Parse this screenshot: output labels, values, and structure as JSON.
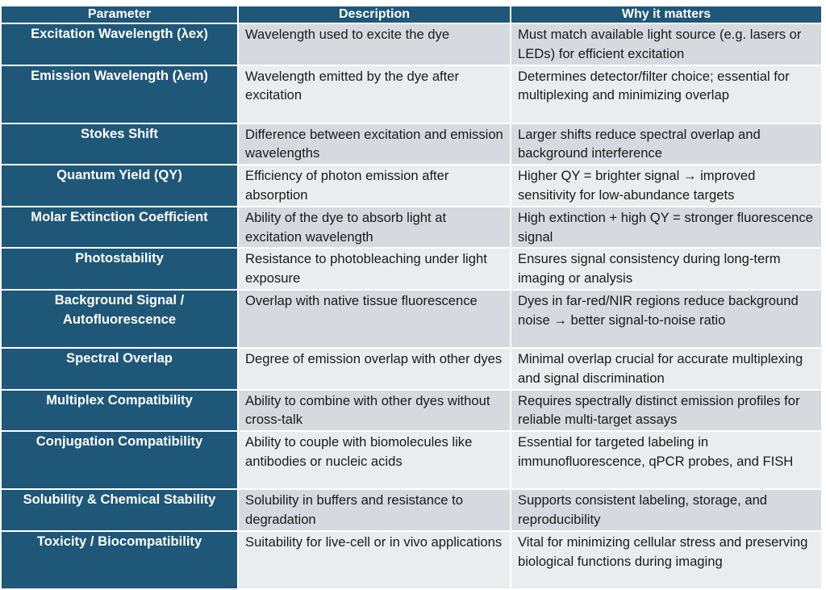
{
  "headers": {
    "parameter": "Parameter",
    "description": "Description",
    "why": "Why it matters"
  },
  "rows": [
    {
      "parameter": "Excitation Wavelength (λex)",
      "description": "Wavelength used to excite the dye",
      "why": "Must match available light source (e.g. lasers or LEDs) for efficient excitation"
    },
    {
      "parameter": "Emission Wavelength (λem)",
      "description": "Wavelength emitted by the dye after excitation",
      "why": "Determines detector/filter choice; essential for multiplexing and minimizing overlap"
    },
    {
      "parameter": "Stokes Shift",
      "description": "Difference between excitation and emission wavelengths",
      "why": "Larger shifts reduce spectral overlap and background interference"
    },
    {
      "parameter": "Quantum Yield (QY)",
      "description": "Efficiency of photon emission after absorption",
      "why": "Higher QY = brighter signal → improved sensitivity for low-abundance targets"
    },
    {
      "parameter": "Molar Extinction Coefficient",
      "description": "Ability of the dye to absorb light at excitation wavelength",
      "why": "High extinction + high QY = stronger fluorescence signal"
    },
    {
      "parameter": "Photostability",
      "description": "Resistance to photobleaching under light exposure",
      "why": "Ensures signal consistency during long-term imaging or analysis"
    },
    {
      "parameter": "Background Signal / Autofluorescence",
      "description": "Overlap with native tissue fluorescence",
      "why": "Dyes in far-red/NIR regions reduce background noise → better signal-to-noise ratio"
    },
    {
      "parameter": "Spectral Overlap",
      "description": "Degree of emission overlap with other dyes",
      "why": "Minimal overlap crucial for accurate multiplexing and signal discrimination"
    },
    {
      "parameter": "Multiplex Compatibility",
      "description": "Ability to combine with other dyes without cross-talk",
      "why": "Requires spectrally distinct emission profiles for reliable multi-target assays"
    },
    {
      "parameter": "Conjugation Compatibility",
      "description": "Ability to couple with biomolecules like antibodies or nucleic acids",
      "why": "Essential for targeted labeling in immunofluorescence, qPCR probes, and FISH"
    },
    {
      "parameter": "Solubility & Chemical Stability",
      "description": "Solubility in buffers and resistance to degradation",
      "why": "Supports consistent labeling, storage, and reproducibility"
    },
    {
      "parameter": "Toxicity / Biocompatibility",
      "description": "Suitability for live-cell or in vivo applications",
      "why": "Vital for minimizing cellular stress and preserving biological functions during imaging"
    }
  ],
  "colors": {
    "header_bg": "#1f5778",
    "row_odd": "#d6d9de",
    "row_even": "#eaecef",
    "header_text": "#ffffff"
  }
}
